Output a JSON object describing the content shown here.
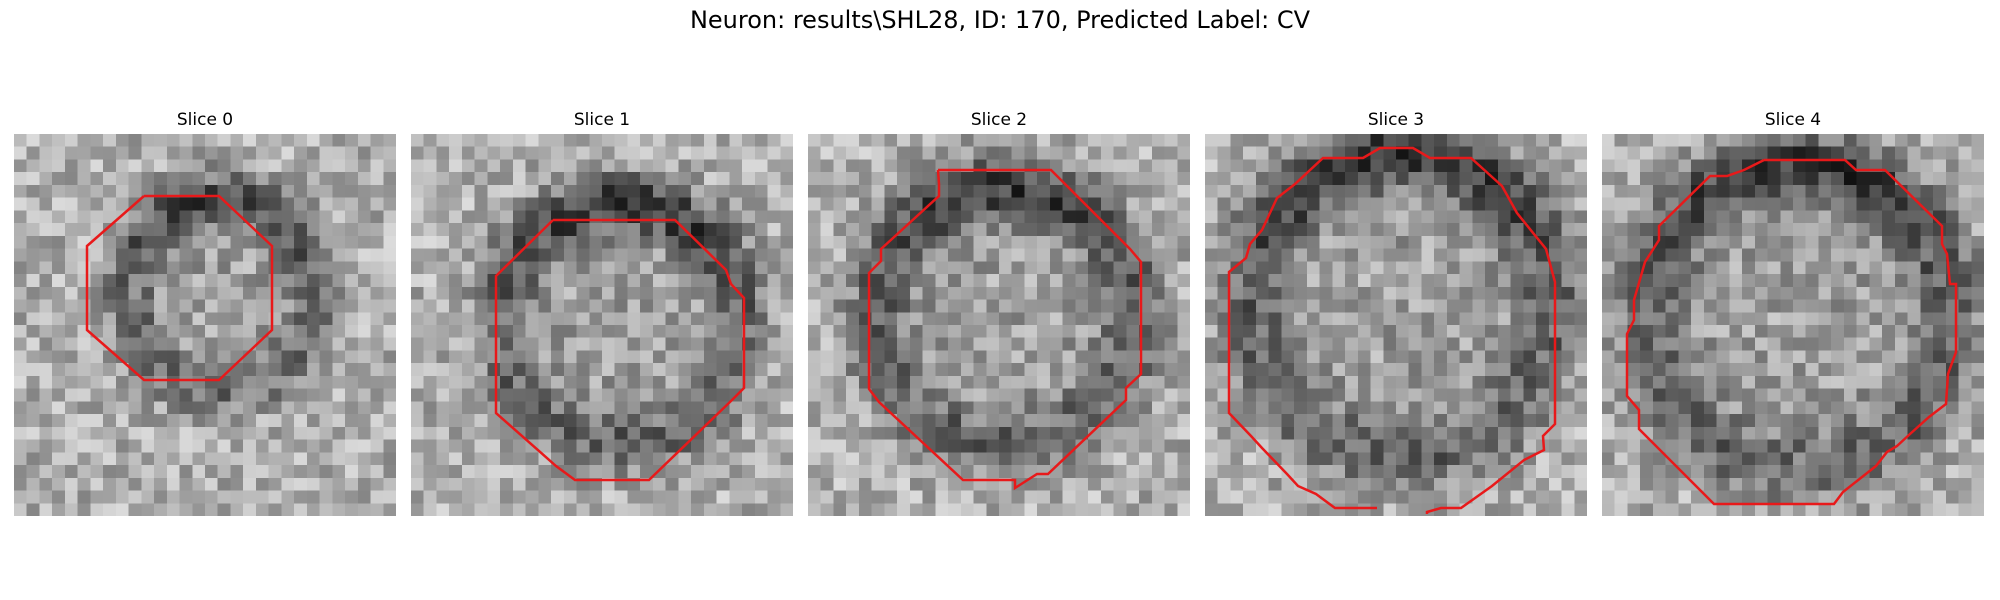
{
  "figure": {
    "title": "Neuron: results\\SHL28, ID: 170, Predicted Label: CV"
  },
  "panels": [
    {
      "title": "Slice 0"
    },
    {
      "title": "Slice 1"
    },
    {
      "title": "Slice 2"
    },
    {
      "title": "Slice 3"
    },
    {
      "title": "Slice 4"
    }
  ],
  "colors": {
    "contour": "#e8191a",
    "background": "#ffffff"
  }
}
